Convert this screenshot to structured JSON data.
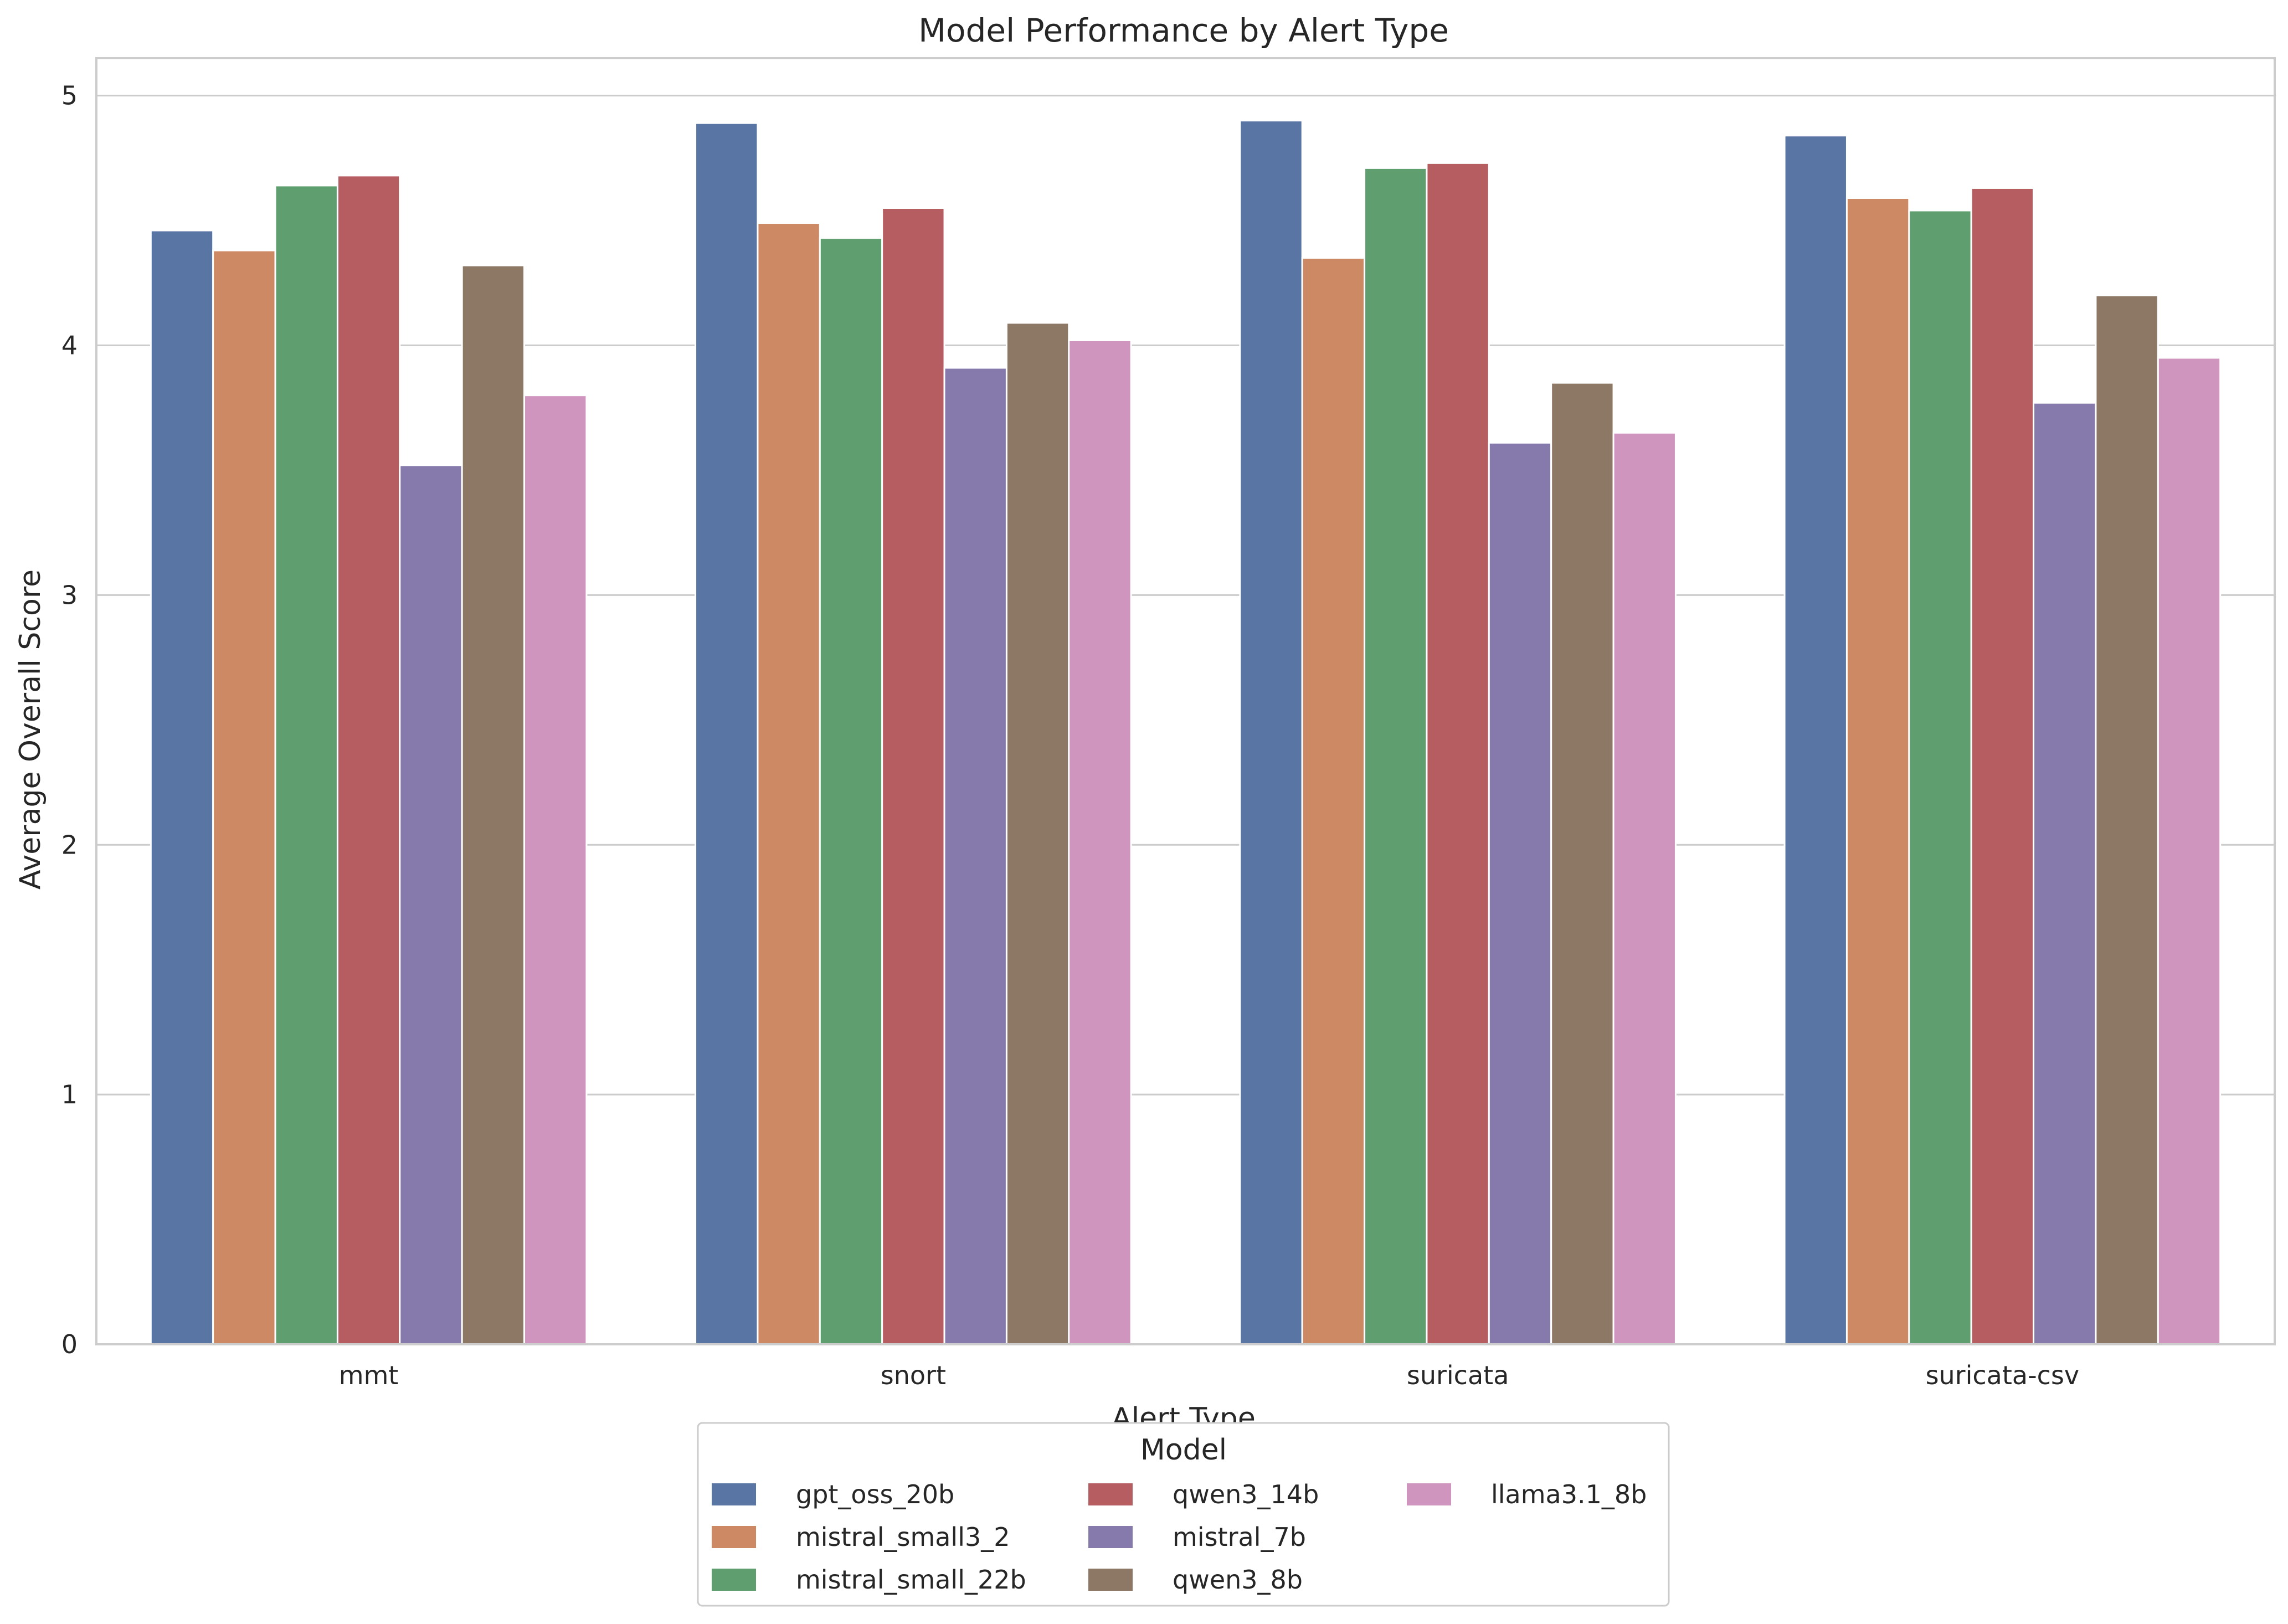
{
  "chart_data": {
    "type": "bar",
    "title": "Model Performance by Alert Type",
    "xlabel": "Alert Type",
    "ylabel": "Average Overall Score",
    "ylim": [
      0,
      5.15
    ],
    "yticks": [
      0,
      1,
      2,
      3,
      4,
      5
    ],
    "grid": true,
    "categories": [
      "mmt",
      "snort",
      "suricata",
      "suricata-csv"
    ],
    "legend": {
      "title": "Model",
      "placement": "bottom-center",
      "columns": 3
    },
    "series": [
      {
        "name": "gpt_oss_20b",
        "color": "#5875a4",
        "values": [
          4.46,
          4.89,
          4.9,
          4.84
        ]
      },
      {
        "name": "mistral_small3_2",
        "color": "#cc8963",
        "values": [
          4.38,
          4.49,
          4.35,
          4.59
        ]
      },
      {
        "name": "mistral_small_22b",
        "color": "#5f9e6e",
        "values": [
          4.64,
          4.43,
          4.71,
          4.54
        ]
      },
      {
        "name": "qwen3_14b",
        "color": "#b55d60",
        "values": [
          4.68,
          4.55,
          4.73,
          4.63
        ]
      },
      {
        "name": "mistral_7b",
        "color": "#857aab",
        "values": [
          3.52,
          3.91,
          3.61,
          3.77
        ]
      },
      {
        "name": "qwen3_8b",
        "color": "#8d7866",
        "values": [
          4.32,
          4.09,
          3.85,
          4.2
        ]
      },
      {
        "name": "llama3.1_8b",
        "color": "#d095bf",
        "values": [
          3.8,
          4.02,
          3.65,
          3.95
        ]
      }
    ]
  }
}
